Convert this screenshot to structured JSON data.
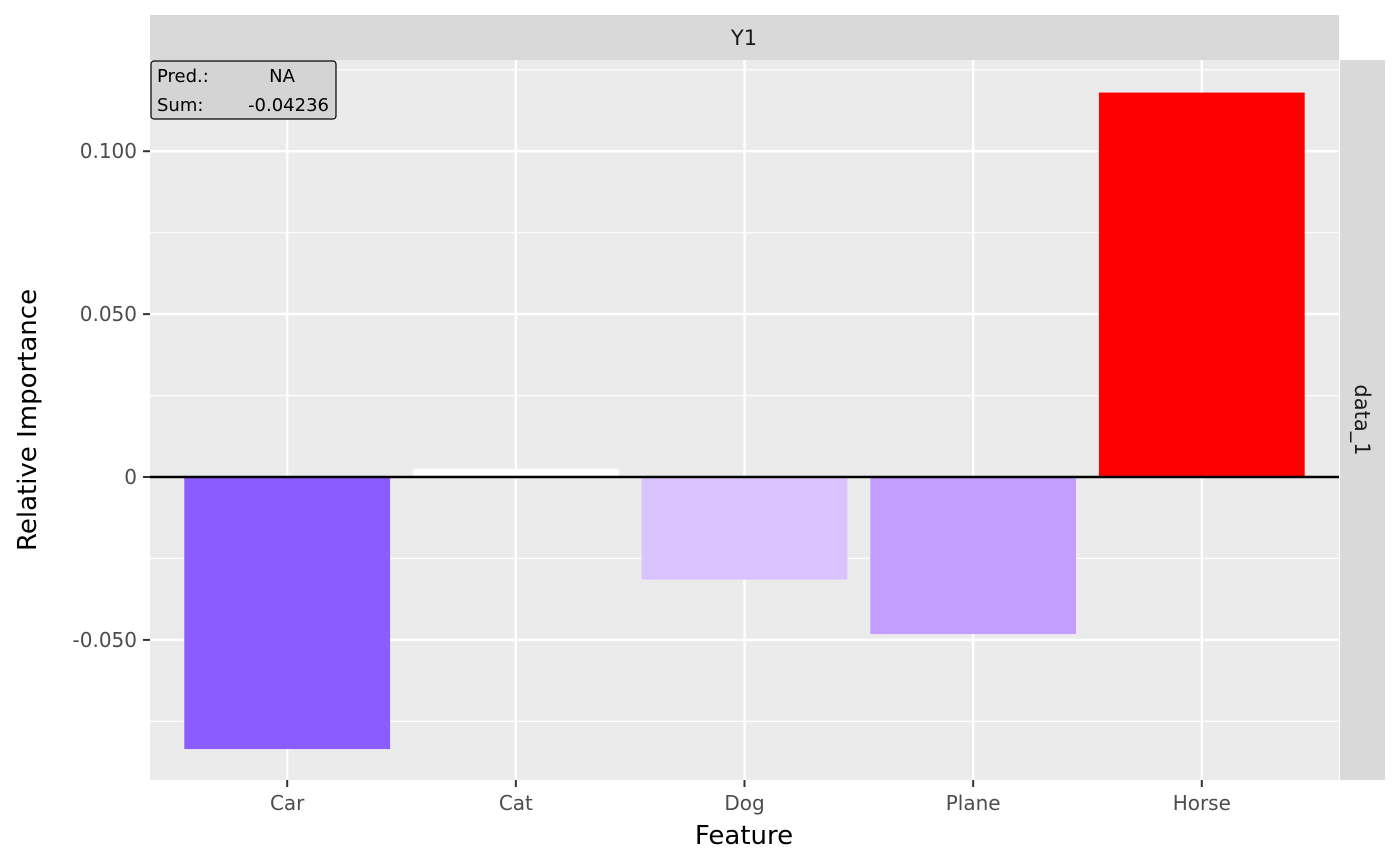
{
  "chart_data": {
    "type": "bar",
    "facet_top": "Y1",
    "facet_right": "data_1",
    "xlabel": "Feature",
    "ylabel": "Relative Importance",
    "categories": [
      "Car",
      "Cat",
      "Dog",
      "Plane",
      "Horse"
    ],
    "values": [
      -0.0835,
      0.0025,
      -0.0315,
      -0.0482,
      0.118
    ],
    "colors": [
      "#8b5cff",
      "#ffffff",
      "#d9c4ff",
      "#c39eff",
      "#ff0000"
    ],
    "ylim": [
      -0.093,
      0.128
    ],
    "yticks": [
      -0.05,
      0,
      0.05,
      0.1
    ],
    "ytick_labels": [
      "-0.050",
      "0",
      "0.050",
      "0.100"
    ],
    "grid": true,
    "annotation": {
      "pred_label": "Pred.:",
      "pred_value": "NA",
      "sum_label": "Sum:",
      "sum_value": "-0.04236"
    }
  }
}
